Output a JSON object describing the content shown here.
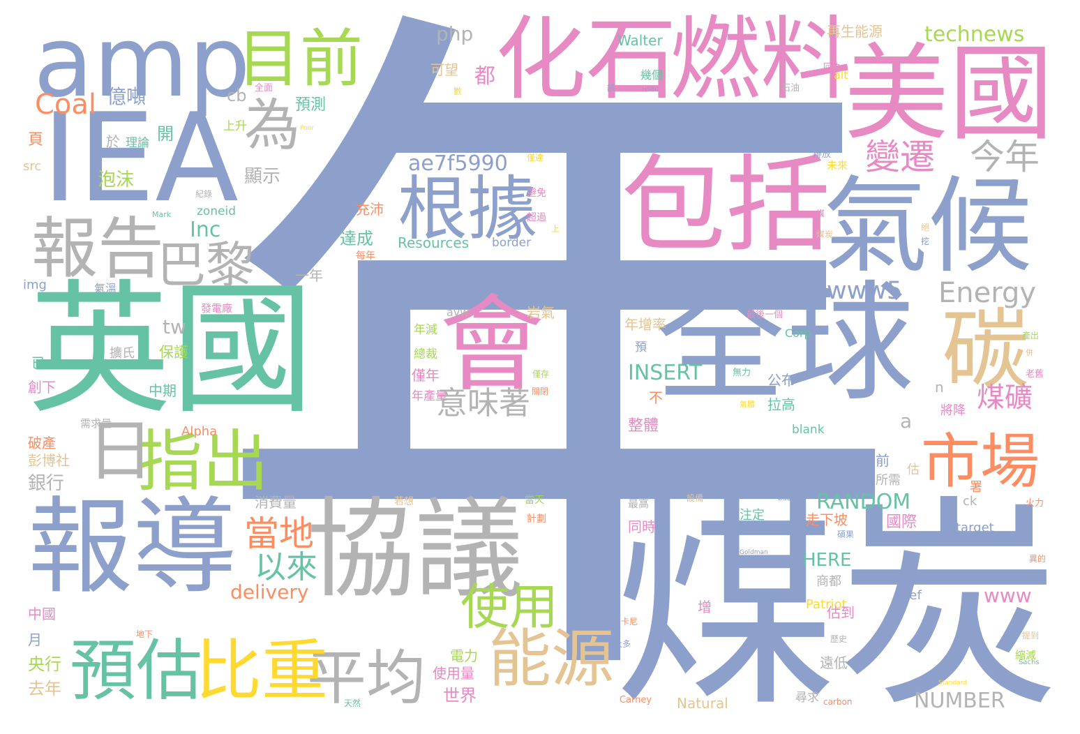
{
  "palette": {
    "blue": "#8da0cb",
    "green": "#66c2a5",
    "pink": "#e78ac3",
    "gray": "#b3b3b3",
    "olive": "#a6d854",
    "tan": "#e5c494",
    "orange": "#fc8d62",
    "yellow": "#ffd92f",
    "background": "#ffffff"
  },
  "words": [
    {
      "text": "年",
      "color": "blue"
    },
    {
      "text": "煤炭",
      "color": "blue"
    },
    {
      "text": "英國",
      "color": "green"
    },
    {
      "text": "全球",
      "color": "blue"
    },
    {
      "text": "美國",
      "color": "pink"
    },
    {
      "text": "燃料",
      "color": "pink"
    },
    {
      "text": "化石",
      "color": "pink"
    },
    {
      "text": "協議",
      "color": "gray"
    },
    {
      "text": "報導",
      "color": "blue"
    },
    {
      "text": "包括",
      "color": "pink"
    },
    {
      "text": "氣候",
      "color": "blue"
    },
    {
      "text": "IEA",
      "color": "blue"
    },
    {
      "text": "amp",
      "color": "blue"
    },
    {
      "text": "會",
      "color": "pink"
    },
    {
      "text": "碳",
      "color": "tan"
    },
    {
      "text": "根據",
      "color": "blue"
    },
    {
      "text": "報告",
      "color": "gray"
    },
    {
      "text": "目前",
      "color": "olive"
    },
    {
      "text": "市場",
      "color": "orange"
    },
    {
      "text": "能源",
      "color": "tan"
    },
    {
      "text": "平均",
      "color": "gray"
    },
    {
      "text": "預估",
      "color": "green"
    },
    {
      "text": "比重",
      "color": "yellow"
    },
    {
      "text": "指出",
      "color": "olive"
    },
    {
      "text": "日",
      "color": "gray"
    },
    {
      "text": "為",
      "color": "gray"
    },
    {
      "text": "巴黎",
      "color": "gray"
    },
    {
      "text": "使用",
      "color": "olive"
    },
    {
      "text": "變遷",
      "color": "pink"
    },
    {
      "text": "今年",
      "color": "gray"
    },
    {
      "text": "當地",
      "color": "orange"
    },
    {
      "text": "以來",
      "color": "green"
    },
    {
      "text": "意味著",
      "color": "gray"
    },
    {
      "text": "煤礦",
      "color": "pink"
    },
    {
      "text": "Energy",
      "color": "gray"
    },
    {
      "text": "www5",
      "color": "blue"
    },
    {
      "text": "RANDOM",
      "color": "green"
    },
    {
      "text": "Coal",
      "color": "orange"
    },
    {
      "text": "technews",
      "color": "olive"
    },
    {
      "text": "ae7f5990",
      "color": "blue"
    },
    {
      "text": "INSERT",
      "color": "green"
    },
    {
      "text": "delivery",
      "color": "orange"
    },
    {
      "text": "Inc",
      "color": "green"
    },
    {
      "text": "www",
      "color": "pink"
    },
    {
      "text": "NUMBER",
      "color": "gray"
    },
    {
      "text": "php",
      "color": "gray"
    },
    {
      "text": "tw",
      "color": "gray"
    },
    {
      "text": "HERE",
      "color": "green"
    },
    {
      "text": "Walter",
      "color": "green"
    },
    {
      "text": "Resources",
      "color": "green"
    },
    {
      "text": "Natural",
      "color": "tan"
    },
    {
      "text": "Patriot",
      "color": "yellow"
    },
    {
      "text": "href",
      "color": "blue"
    },
    {
      "text": "target",
      "color": "blue"
    },
    {
      "text": "blank",
      "color": "green"
    },
    {
      "text": "border",
      "color": "blue"
    },
    {
      "text": "zoneid",
      "color": "green"
    },
    {
      "text": "Alpha",
      "color": "orange"
    },
    {
      "text": "Corp",
      "color": "green"
    },
    {
      "text": "cb",
      "color": "gray"
    },
    {
      "text": "src",
      "color": "tan"
    },
    {
      "text": "img",
      "color": "blue"
    },
    {
      "text": "avw",
      "color": "gray"
    },
    {
      "text": "ck",
      "color": "gray"
    },
    {
      "text": "a",
      "color": "gray"
    },
    {
      "text": "n",
      "color": "gray"
    },
    {
      "text": "alt",
      "color": "yellow"
    },
    {
      "text": "Carney",
      "color": "orange"
    },
    {
      "text": "carbon",
      "color": "orange"
    },
    {
      "text": "Mark",
      "color": "green"
    },
    {
      "text": "HSBC",
      "color": "blue"
    },
    {
      "text": "Poor",
      "color": "yellow"
    },
    {
      "text": "bubble",
      "color": "blue"
    },
    {
      "text": "Goldman",
      "color": "blue"
    },
    {
      "text": "Sachs",
      "color": "green"
    },
    {
      "text": "Standard",
      "color": "yellow"
    },
    {
      "text": "億噸",
      "color": "blue"
    },
    {
      "text": "預測",
      "color": "green"
    },
    {
      "text": "上升",
      "color": "olive"
    },
    {
      "text": "開",
      "color": "green"
    },
    {
      "text": "於",
      "color": "gray"
    },
    {
      "text": "理論",
      "color": "green"
    },
    {
      "text": "頁",
      "color": "orange"
    },
    {
      "text": "泡沫",
      "color": "olive"
    },
    {
      "text": "顯示",
      "color": "gray"
    },
    {
      "text": "充沛",
      "color": "orange"
    },
    {
      "text": "達成",
      "color": "green"
    },
    {
      "text": "每年",
      "color": "orange"
    },
    {
      "text": "一年",
      "color": "gray"
    },
    {
      "text": "氣溫",
      "color": "blue"
    },
    {
      "text": "發電廠",
      "color": "pink"
    },
    {
      "text": "擴氏",
      "color": "gray"
    },
    {
      "text": "保護",
      "color": "olive"
    },
    {
      "text": "中期",
      "color": "green"
    },
    {
      "text": "創下",
      "color": "pink"
    },
    {
      "text": "已",
      "color": "green"
    },
    {
      "text": "需求量",
      "color": "gray"
    },
    {
      "text": "破產",
      "color": "orange"
    },
    {
      "text": "彭博社",
      "color": "tan"
    },
    {
      "text": "銀行",
      "color": "gray"
    },
    {
      "text": "消費量",
      "color": "gray"
    },
    {
      "text": "若想",
      "color": "tan"
    },
    {
      "text": "當天",
      "color": "olive"
    },
    {
      "text": "計劃",
      "color": "orange"
    },
    {
      "text": "中國",
      "color": "pink"
    },
    {
      "text": "月",
      "color": "blue"
    },
    {
      "text": "央行",
      "color": "olive"
    },
    {
      "text": "去年",
      "color": "tan"
    },
    {
      "text": "地下",
      "color": "orange"
    },
    {
      "text": "世界",
      "color": "pink"
    },
    {
      "text": "電力",
      "color": "olive"
    },
    {
      "text": "使用量",
      "color": "pink"
    },
    {
      "text": "天然",
      "color": "green"
    },
    {
      "text": "可望",
      "color": "tan"
    },
    {
      "text": "都",
      "color": "pink"
    },
    {
      "text": "數",
      "color": "yellow"
    },
    {
      "text": "再生能源",
      "color": "tan"
    },
    {
      "text": "回收",
      "color": "pink"
    },
    {
      "text": "全面",
      "color": "pink"
    },
    {
      "text": "所需",
      "color": "gray"
    },
    {
      "text": "岩氣",
      "color": "tan"
    },
    {
      "text": "年減",
      "color": "olive"
    },
    {
      "text": "總裁",
      "color": "olive"
    },
    {
      "text": "僅年",
      "color": "pink"
    },
    {
      "text": "年產量",
      "color": "pink"
    },
    {
      "text": "僅存",
      "color": "olive"
    },
    {
      "text": "關閉",
      "color": "orange"
    },
    {
      "text": "年增率",
      "color": "tan"
    },
    {
      "text": "預",
      "color": "blue"
    },
    {
      "text": "不",
      "color": "orange"
    },
    {
      "text": "整體",
      "color": "pink"
    },
    {
      "text": "公布",
      "color": "blue"
    },
    {
      "text": "拉高",
      "color": "green"
    },
    {
      "text": "無力",
      "color": "green"
    },
    {
      "text": "氣體",
      "color": "yellow"
    },
    {
      "text": "將降",
      "color": "pink"
    },
    {
      "text": "前",
      "color": "blue"
    },
    {
      "text": "估",
      "color": "tan"
    },
    {
      "text": "署",
      "color": "orange"
    },
    {
      "text": "國際",
      "color": "pink"
    },
    {
      "text": "走下坡",
      "color": "orange"
    },
    {
      "text": "注定",
      "color": "green"
    },
    {
      "text": "同時",
      "color": "pink"
    },
    {
      "text": "最高",
      "color": "gray"
    },
    {
      "text": "設備",
      "color": "tan"
    },
    {
      "text": "商都",
      "color": "gray"
    },
    {
      "text": "估到",
      "color": "pink"
    },
    {
      "text": "增",
      "color": "pink"
    },
    {
      "text": "卡尼",
      "color": "orange"
    },
    {
      "text": "大多",
      "color": "blue"
    },
    {
      "text": "遠低",
      "color": "gray"
    },
    {
      "text": "尋求",
      "color": "gray"
    },
    {
      "text": "歷史",
      "color": "gray"
    },
    {
      "text": "碩果",
      "color": "blue"
    },
    {
      "text": "最後一個",
      "color": "pink"
    },
    {
      "text": "提到",
      "color": "tan"
    },
    {
      "text": "縮減",
      "color": "olive"
    },
    {
      "text": "火力",
      "color": "orange"
    },
    {
      "text": "異的",
      "color": "orange"
    },
    {
      "text": "老舊",
      "color": "pink"
    },
    {
      "text": "排放",
      "color": "blue"
    },
    {
      "text": "未來",
      "color": "yellow"
    },
    {
      "text": "僅達",
      "color": "yellow"
    },
    {
      "text": "避免",
      "color": "pink"
    },
    {
      "text": "超過",
      "color": "pink"
    },
    {
      "text": "上",
      "color": "yellow"
    },
    {
      "text": "紀錄",
      "color": "gray"
    },
    {
      "text": "煤",
      "color": "pink"
    },
    {
      "text": "石油",
      "color": "gray"
    },
    {
      "text": "幾個",
      "color": "green"
    },
    {
      "text": "該",
      "color": "blue"
    },
    {
      "text": "絕",
      "color": "tan"
    },
    {
      "text": "挖",
      "color": "blue"
    },
    {
      "text": "產出",
      "color": "olive"
    },
    {
      "text": "併",
      "color": "tan"
    },
    {
      "text": "煤炭",
      "color": "tan"
    }
  ]
}
